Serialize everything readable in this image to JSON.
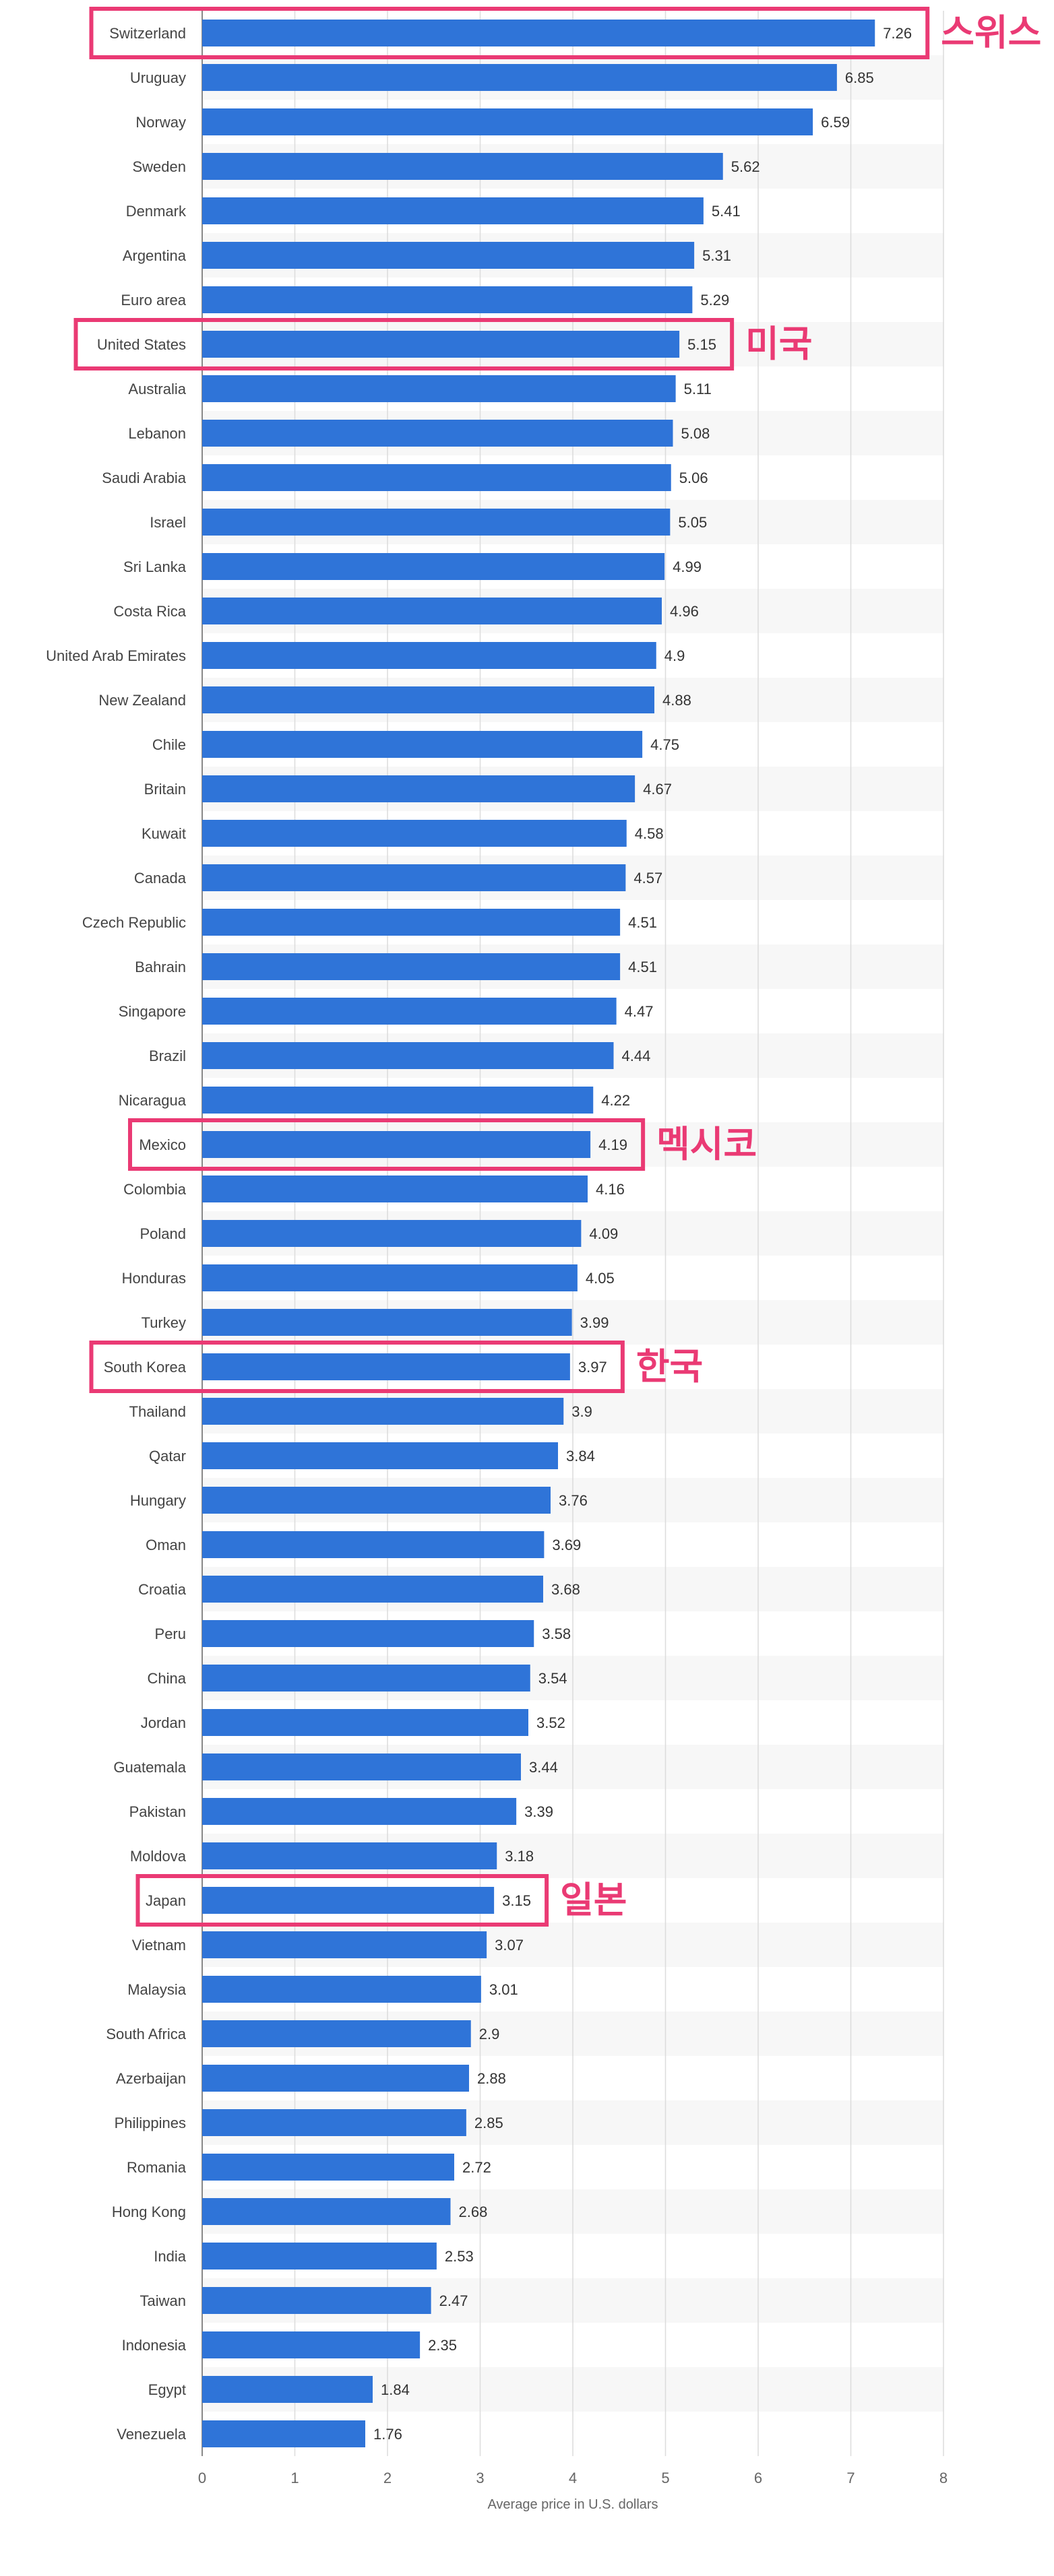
{
  "chart_data": {
    "type": "bar",
    "orientation": "horizontal",
    "categories": [
      "Switzerland",
      "Uruguay",
      "Norway",
      "Sweden",
      "Denmark",
      "Argentina",
      "Euro area",
      "United States",
      "Australia",
      "Lebanon",
      "Saudi Arabia",
      "Israel",
      "Sri Lanka",
      "Costa Rica",
      "United Arab Emirates",
      "New Zealand",
      "Chile",
      "Britain",
      "Kuwait",
      "Canada",
      "Czech Republic",
      "Bahrain",
      "Singapore",
      "Brazil",
      "Nicaragua",
      "Mexico",
      "Colombia",
      "Poland",
      "Honduras",
      "Turkey",
      "South Korea",
      "Thailand",
      "Qatar",
      "Hungary",
      "Oman",
      "Croatia",
      "Peru",
      "China",
      "Jordan",
      "Guatemala",
      "Pakistan",
      "Moldova",
      "Japan",
      "Vietnam",
      "Malaysia",
      "South Africa",
      "Azerbaijan",
      "Philippines",
      "Romania",
      "Hong Kong",
      "India",
      "Taiwan",
      "Indonesia",
      "Egypt",
      "Venezuela"
    ],
    "values": [
      7.26,
      6.85,
      6.59,
      5.62,
      5.41,
      5.31,
      5.29,
      5.15,
      5.11,
      5.08,
      5.06,
      5.05,
      4.99,
      4.96,
      4.9,
      4.88,
      4.75,
      4.67,
      4.58,
      4.57,
      4.51,
      4.51,
      4.47,
      4.44,
      4.22,
      4.19,
      4.16,
      4.09,
      4.05,
      3.99,
      3.97,
      3.9,
      3.84,
      3.76,
      3.69,
      3.68,
      3.58,
      3.54,
      3.52,
      3.44,
      3.39,
      3.18,
      3.15,
      3.07,
      3.01,
      2.9,
      2.88,
      2.85,
      2.72,
      2.68,
      2.53,
      2.47,
      2.35,
      1.84,
      1.76
    ],
    "xlabel": "Average price in U.S. dollars",
    "xlim": [
      0,
      8
    ],
    "xticks": [
      "0",
      "1",
      "2",
      "3",
      "4",
      "5",
      "6",
      "7",
      "8"
    ],
    "grid": true,
    "bar_color": "#2f74d8",
    "highlight_color": "#ea3a74",
    "highlights": [
      {
        "category": "Switzerland",
        "note": "스위스"
      },
      {
        "category": "United States",
        "note": "미국"
      },
      {
        "category": "Mexico",
        "note": "멕시코"
      },
      {
        "category": "South Korea",
        "note": "한국"
      },
      {
        "category": "Japan",
        "note": "일본"
      }
    ]
  }
}
